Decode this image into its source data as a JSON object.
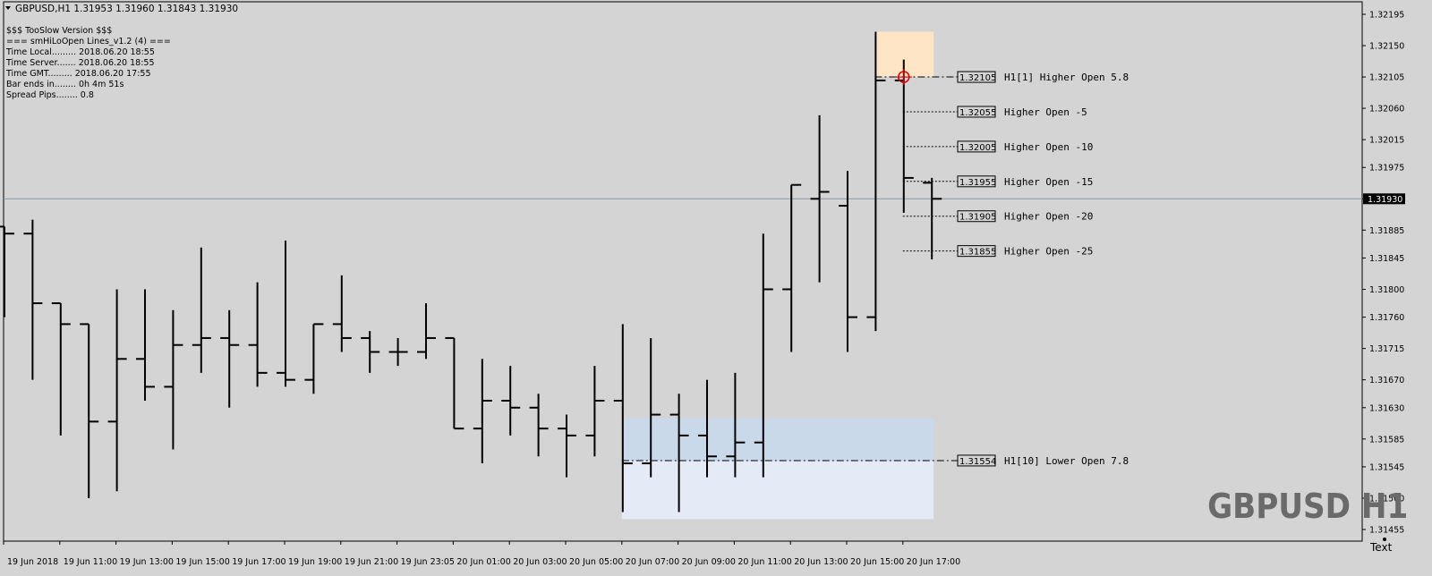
{
  "header": {
    "title": "GBPUSD,H1  1.31953 1.31960 1.31843 1.31930"
  },
  "info_panel": [
    "$$$ TooSlow Version $$$",
    "=== smHiLoOpen Lines_v1.2 (4) ===",
    "Time Local......... 2018.06.20 18:55",
    "Time Server....... 2018.06.20 18:55",
    "Time GMT......... 2018.06.20 17:55",
    "Bar ends in........ 0h 4m 51s",
    "Spread Pips........ 0.8"
  ],
  "watermark": "GBPUSD H1",
  "corner_label": "Text",
  "current_price": {
    "value": 1.3193,
    "label": "1.31930"
  },
  "levels": [
    {
      "price": 1.32105,
      "label": "1.32105",
      "text": "H1[1] Higher Open 5.8",
      "style": "dashdot"
    },
    {
      "price": 1.32055,
      "label": "1.32055",
      "text": "Higher Open -5",
      "style": "dotted"
    },
    {
      "price": 1.32005,
      "label": "1.32005",
      "text": "Higher Open -10",
      "style": "dotted"
    },
    {
      "price": 1.31955,
      "label": "1.31955",
      "text": "Higher Open -15",
      "style": "dotted"
    },
    {
      "price": 1.31905,
      "label": "1.31905",
      "text": "Higher Open -20",
      "style": "dotted"
    },
    {
      "price": 1.31855,
      "label": "1.31855",
      "text": "Higher Open -25",
      "style": "dotted"
    },
    {
      "price": 1.31554,
      "label": "1.31554",
      "text": "H1[10] Lower Open 7.8",
      "style": "dashdot"
    }
  ],
  "zones": [
    {
      "price_top": 1.3217,
      "price_bottom": 1.32105,
      "start_bar": 31,
      "end_bar": 33,
      "color": "#fde5c6"
    },
    {
      "price_top": 1.31615,
      "price_bottom": 1.31554,
      "start_bar": 22,
      "end_bar": 33,
      "color": "#c9d9ea"
    },
    {
      "price_top": 1.31554,
      "price_bottom": 1.3147,
      "start_bar": 22,
      "end_bar": 33,
      "color": "#e4ebf7"
    }
  ],
  "colors": {
    "background": "#d4d4d4",
    "bars": "#000000",
    "text": "#000000",
    "current_price_line": "#8a98a8",
    "marker": "#d40000",
    "watermark": "#6a6a6a",
    "price_badge_bg": "#000000",
    "price_badge_text": "#ffffff"
  },
  "chart_data": {
    "type": "ohlc",
    "symbol": "GBPUSD",
    "timeframe": "H1",
    "y_range": [
      1.3144,
      1.3222
    ],
    "price_axis_ticks": [
      "1.32195",
      "1.32150",
      "1.32105",
      "1.32060",
      "1.32015",
      "1.31975",
      "1.31930",
      "1.31885",
      "1.31845",
      "1.31800",
      "1.31760",
      "1.31715",
      "1.31670",
      "1.31630",
      "1.31585",
      "1.31545",
      "1.31500",
      "1.31455"
    ],
    "time_labels": [
      {
        "bar": 0,
        "label": "19 Jun 2018"
      },
      {
        "bar": 2,
        "label": "19 Jun 11:00"
      },
      {
        "bar": 4,
        "label": "19 Jun 13:00"
      },
      {
        "bar": 6,
        "label": "19 Jun 15:00"
      },
      {
        "bar": 8,
        "label": "19 Jun 17:00"
      },
      {
        "bar": 10,
        "label": "19 Jun 19:00"
      },
      {
        "bar": 12,
        "label": "19 Jun 21:00"
      },
      {
        "bar": 14,
        "label": "19 Jun 23:05"
      },
      {
        "bar": 16,
        "label": "20 Jun 01:00"
      },
      {
        "bar": 18,
        "label": "20 Jun 03:00"
      },
      {
        "bar": 20,
        "label": "20 Jun 05:00"
      },
      {
        "bar": 22,
        "label": "20 Jun 07:00"
      },
      {
        "bar": 24,
        "label": "20 Jun 09:00"
      },
      {
        "bar": 26,
        "label": "20 Jun 11:00"
      },
      {
        "bar": 28,
        "label": "20 Jun 13:00"
      },
      {
        "bar": 30,
        "label": "20 Jun 15:00"
      },
      {
        "bar": 32,
        "label": "20 Jun 17:00"
      }
    ],
    "bars": [
      {
        "o": 1.3189,
        "h": 1.3189,
        "l": 1.3176,
        "c": 1.3188
      },
      {
        "o": 1.3188,
        "h": 1.319,
        "l": 1.3167,
        "c": 1.3178
      },
      {
        "o": 1.3178,
        "h": 1.3178,
        "l": 1.3159,
        "c": 1.3175
      },
      {
        "o": 1.3175,
        "h": 1.3175,
        "l": 1.315,
        "c": 1.3161
      },
      {
        "o": 1.3161,
        "h": 1.318,
        "l": 1.3151,
        "c": 1.317
      },
      {
        "o": 1.317,
        "h": 1.318,
        "l": 1.3164,
        "c": 1.3166
      },
      {
        "o": 1.3166,
        "h": 1.3177,
        "l": 1.3157,
        "c": 1.3172
      },
      {
        "o": 1.3172,
        "h": 1.3186,
        "l": 1.3168,
        "c": 1.3173
      },
      {
        "o": 1.3173,
        "h": 1.3177,
        "l": 1.3163,
        "c": 1.3172
      },
      {
        "o": 1.3172,
        "h": 1.3181,
        "l": 1.3166,
        "c": 1.3168
      },
      {
        "o": 1.3168,
        "h": 1.3187,
        "l": 1.3166,
        "c": 1.3167
      },
      {
        "o": 1.3167,
        "h": 1.3175,
        "l": 1.3165,
        "c": 1.3175
      },
      {
        "o": 1.3175,
        "h": 1.3182,
        "l": 1.3171,
        "c": 1.3173
      },
      {
        "o": 1.3173,
        "h": 1.3174,
        "l": 1.3168,
        "c": 1.3171
      },
      {
        "o": 1.3171,
        "h": 1.3173,
        "l": 1.3169,
        "c": 1.3171
      },
      {
        "o": 1.3171,
        "h": 1.3178,
        "l": 1.317,
        "c": 1.3173
      },
      {
        "o": 1.3173,
        "h": 1.3173,
        "l": 1.316,
        "c": 1.316
      },
      {
        "o": 1.316,
        "h": 1.317,
        "l": 1.3155,
        "c": 1.3164
      },
      {
        "o": 1.3164,
        "h": 1.3169,
        "l": 1.3159,
        "c": 1.3163
      },
      {
        "o": 1.3163,
        "h": 1.3165,
        "l": 1.3156,
        "c": 1.316
      },
      {
        "o": 1.316,
        "h": 1.3162,
        "l": 1.3153,
        "c": 1.3159
      },
      {
        "o": 1.3159,
        "h": 1.3169,
        "l": 1.3156,
        "c": 1.3164
      },
      {
        "o": 1.3164,
        "h": 1.3175,
        "l": 1.3148,
        "c": 1.3155
      },
      {
        "o": 1.3155,
        "h": 1.3173,
        "l": 1.3153,
        "c": 1.3162
      },
      {
        "o": 1.3162,
        "h": 1.3165,
        "l": 1.3148,
        "c": 1.3159
      },
      {
        "o": 1.3159,
        "h": 1.3167,
        "l": 1.3153,
        "c": 1.3156
      },
      {
        "o": 1.3156,
        "h": 1.3168,
        "l": 1.3153,
        "c": 1.3158
      },
      {
        "o": 1.3158,
        "h": 1.3188,
        "l": 1.3153,
        "c": 1.318
      },
      {
        "o": 1.318,
        "h": 1.3195,
        "l": 1.3171,
        "c": 1.3195
      },
      {
        "o": 1.3193,
        "h": 1.3205,
        "l": 1.3181,
        "c": 1.3194
      },
      {
        "o": 1.3192,
        "h": 1.3197,
        "l": 1.3171,
        "c": 1.3176
      },
      {
        "o": 1.3176,
        "h": 1.3217,
        "l": 1.3174,
        "c": 1.321
      },
      {
        "o": 1.321,
        "h": 1.3213,
        "l": 1.3191,
        "c": 1.3196
      },
      {
        "o": 1.31953,
        "h": 1.3196,
        "l": 1.31843,
        "c": 1.3193
      }
    ]
  }
}
